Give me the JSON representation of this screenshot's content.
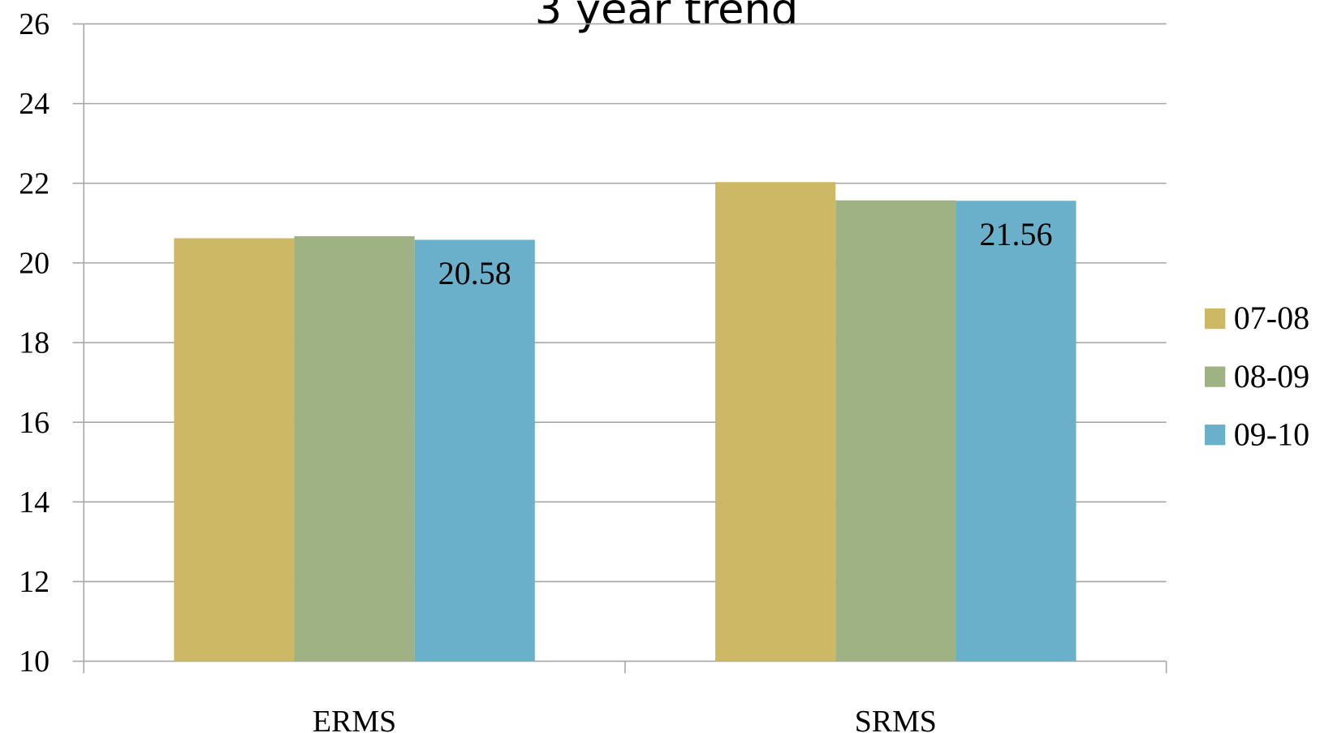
{
  "chart_data": {
    "type": "bar",
    "title": "3 year trend",
    "categories": [
      "ERMS",
      "SRMS"
    ],
    "series": [
      {
        "name": "07-08",
        "color": "#cdb865",
        "values": [
          20.62,
          22.03
        ]
      },
      {
        "name": "08-09",
        "color": "#9eb284",
        "values": [
          20.67,
          21.57
        ]
      },
      {
        "name": "09-10",
        "color": "#6bb0ca",
        "values": [
          20.58,
          21.56
        ],
        "data_labels": true
      }
    ],
    "ylim": [
      10,
      26
    ],
    "yticks": [
      10,
      12,
      14,
      16,
      18,
      20,
      22,
      24,
      26
    ],
    "grid": true,
    "legend": "right"
  }
}
